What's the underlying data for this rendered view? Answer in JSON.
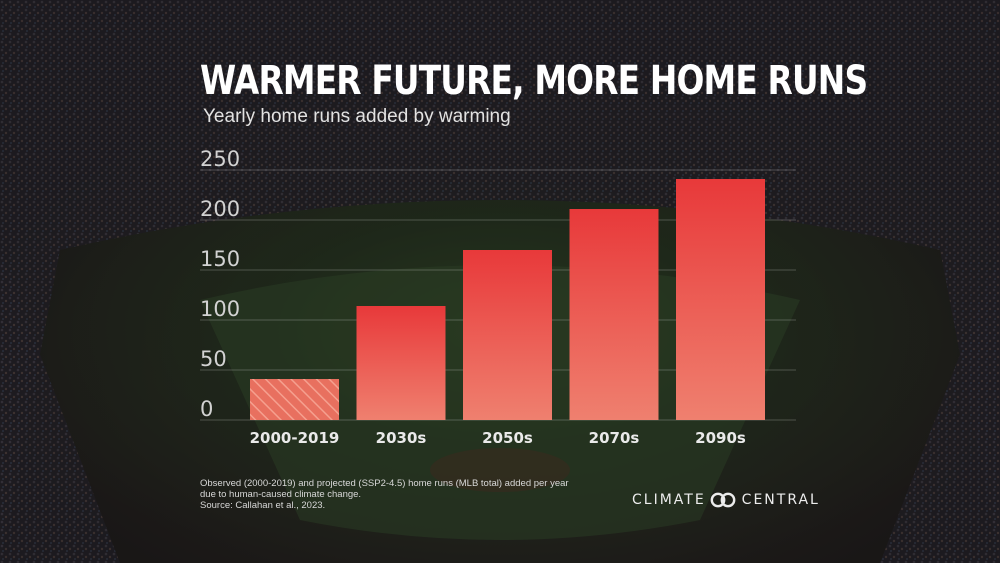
{
  "header": {
    "title": "WARMER FUTURE, MORE HOME RUNS",
    "subtitle": "Yearly home runs added by warming"
  },
  "chart_data": {
    "type": "bar",
    "title": "WARMER FUTURE, MORE HOME RUNS",
    "subtitle": "Yearly home runs added by warming",
    "categories": [
      "2000-2019",
      "2030s",
      "2050s",
      "2070s",
      "2090s"
    ],
    "values": [
      41,
      114,
      170,
      211,
      241
    ],
    "observed_category": "2000-2019",
    "yticks": [
      0,
      50,
      100,
      150,
      200,
      250
    ],
    "ylim": [
      0,
      250
    ],
    "xlabel": "",
    "ylabel": "",
    "grid": true,
    "colors": {
      "bar_top": "#e8393a",
      "bar_bottom": "#ef806f",
      "observed": "#e8705f",
      "observed_hatch": "#f5a08f"
    }
  },
  "footnote": {
    "line1": "Observed (2000-2019) and projected (SSP2-4.5) home runs (MLB total) added per year due to human-caused climate change.",
    "line2": "Source: Callahan et al., 2023."
  },
  "brand": {
    "left": "CLIMATE",
    "right": "CENTRAL",
    "icon": "climate-central-logo-icon"
  }
}
